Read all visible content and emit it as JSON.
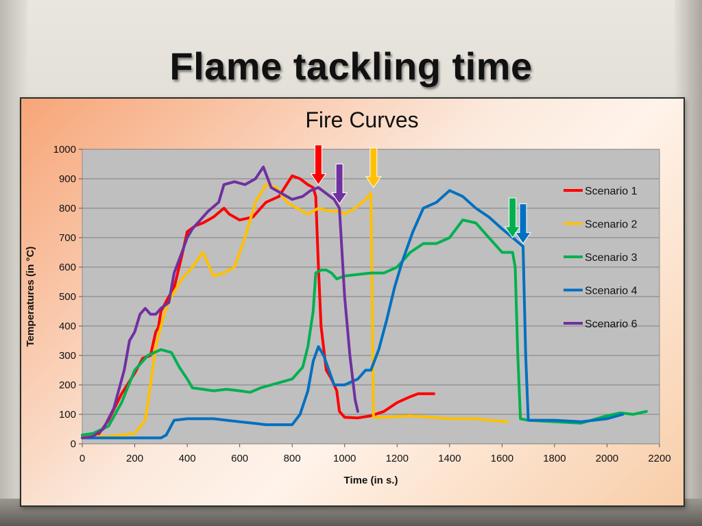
{
  "slide": {
    "title": "Flame tackling time"
  },
  "chart_data": {
    "type": "line",
    "title": "Fire Curves",
    "xlabel": "Time (in s.)",
    "ylabel": "Temperatures (in °C)",
    "xlim": [
      0,
      2200
    ],
    "ylim": [
      0,
      1000
    ],
    "x_ticks": [
      0,
      200,
      400,
      600,
      800,
      1000,
      1200,
      1400,
      1600,
      1800,
      2000,
      2200
    ],
    "y_ticks": [
      0,
      100,
      200,
      300,
      400,
      500,
      600,
      700,
      800,
      900,
      1000
    ],
    "grid": "horizontal",
    "legend_position": "right",
    "series": [
      {
        "name": "Scenario 1",
        "color": "#ff0000",
        "points": [
          [
            0,
            25
          ],
          [
            60,
            30
          ],
          [
            100,
            80
          ],
          [
            150,
            170
          ],
          [
            200,
            240
          ],
          [
            230,
            290
          ],
          [
            260,
            300
          ],
          [
            280,
            380
          ],
          [
            290,
            395
          ],
          [
            300,
            450
          ],
          [
            330,
            500
          ],
          [
            350,
            530
          ],
          [
            380,
            640
          ],
          [
            400,
            720
          ],
          [
            430,
            740
          ],
          [
            460,
            750
          ],
          [
            500,
            770
          ],
          [
            540,
            800
          ],
          [
            560,
            780
          ],
          [
            600,
            760
          ],
          [
            650,
            770
          ],
          [
            700,
            820
          ],
          [
            750,
            840
          ],
          [
            800,
            910
          ],
          [
            830,
            900
          ],
          [
            860,
            880
          ],
          [
            880,
            870
          ],
          [
            890,
            840
          ],
          [
            900,
            600
          ],
          [
            910,
            400
          ],
          [
            930,
            250
          ],
          [
            950,
            220
          ],
          [
            970,
            180
          ],
          [
            980,
            110
          ],
          [
            1000,
            90
          ],
          [
            1050,
            88
          ],
          [
            1100,
            95
          ],
          [
            1150,
            110
          ],
          [
            1200,
            140
          ],
          [
            1250,
            160
          ],
          [
            1280,
            170
          ],
          [
            1340,
            170
          ]
        ]
      },
      {
        "name": "Scenario 2",
        "color": "#ffc000",
        "points": [
          [
            0,
            25
          ],
          [
            100,
            25
          ],
          [
            200,
            35
          ],
          [
            240,
            80
          ],
          [
            260,
            200
          ],
          [
            280,
            330
          ],
          [
            300,
            400
          ],
          [
            320,
            460
          ],
          [
            340,
            500
          ],
          [
            380,
            560
          ],
          [
            420,
            600
          ],
          [
            460,
            650
          ],
          [
            500,
            570
          ],
          [
            540,
            580
          ],
          [
            580,
            600
          ],
          [
            620,
            700
          ],
          [
            660,
            820
          ],
          [
            700,
            880
          ],
          [
            740,
            870
          ],
          [
            780,
            820
          ],
          [
            820,
            800
          ],
          [
            860,
            780
          ],
          [
            900,
            800
          ],
          [
            940,
            790
          ],
          [
            980,
            790
          ],
          [
            1000,
            780
          ],
          [
            1040,
            800
          ],
          [
            1080,
            830
          ],
          [
            1100,
            850
          ],
          [
            1105,
            500
          ],
          [
            1110,
            90
          ],
          [
            1150,
            90
          ],
          [
            1250,
            95
          ],
          [
            1400,
            85
          ],
          [
            1500,
            85
          ],
          [
            1550,
            80
          ],
          [
            1620,
            75
          ]
        ]
      },
      {
        "name": "Scenario 3",
        "color": "#00b050",
        "points": [
          [
            0,
            30
          ],
          [
            40,
            35
          ],
          [
            100,
            60
          ],
          [
            150,
            140
          ],
          [
            200,
            250
          ],
          [
            250,
            300
          ],
          [
            300,
            320
          ],
          [
            340,
            310
          ],
          [
            370,
            260
          ],
          [
            400,
            220
          ],
          [
            420,
            190
          ],
          [
            460,
            185
          ],
          [
            500,
            180
          ],
          [
            550,
            185
          ],
          [
            600,
            180
          ],
          [
            640,
            175
          ],
          [
            680,
            190
          ],
          [
            720,
            200
          ],
          [
            760,
            210
          ],
          [
            800,
            220
          ],
          [
            840,
            260
          ],
          [
            860,
            330
          ],
          [
            880,
            450
          ],
          [
            890,
            580
          ],
          [
            910,
            590
          ],
          [
            930,
            590
          ],
          [
            950,
            580
          ],
          [
            970,
            560
          ],
          [
            1000,
            570
          ],
          [
            1050,
            575
          ],
          [
            1100,
            580
          ],
          [
            1150,
            580
          ],
          [
            1200,
            600
          ],
          [
            1250,
            650
          ],
          [
            1300,
            680
          ],
          [
            1350,
            680
          ],
          [
            1400,
            700
          ],
          [
            1450,
            760
          ],
          [
            1500,
            750
          ],
          [
            1550,
            700
          ],
          [
            1600,
            650
          ],
          [
            1640,
            650
          ],
          [
            1650,
            600
          ],
          [
            1660,
            300
          ],
          [
            1670,
            85
          ],
          [
            1700,
            80
          ],
          [
            1800,
            75
          ],
          [
            1900,
            70
          ],
          [
            2000,
            95
          ],
          [
            2050,
            105
          ],
          [
            2100,
            100
          ],
          [
            2150,
            110
          ]
        ]
      },
      {
        "name": "Scenario 4",
        "color": "#0070c0",
        "points": [
          [
            0,
            20
          ],
          [
            100,
            20
          ],
          [
            200,
            20
          ],
          [
            300,
            20
          ],
          [
            320,
            30
          ],
          [
            350,
            80
          ],
          [
            400,
            85
          ],
          [
            500,
            85
          ],
          [
            550,
            80
          ],
          [
            600,
            75
          ],
          [
            650,
            70
          ],
          [
            700,
            65
          ],
          [
            750,
            65
          ],
          [
            800,
            65
          ],
          [
            830,
            100
          ],
          [
            860,
            180
          ],
          [
            880,
            280
          ],
          [
            900,
            330
          ],
          [
            920,
            300
          ],
          [
            940,
            250
          ],
          [
            960,
            200
          ],
          [
            1000,
            200
          ],
          [
            1050,
            220
          ],
          [
            1080,
            250
          ],
          [
            1100,
            250
          ],
          [
            1130,
            320
          ],
          [
            1160,
            420
          ],
          [
            1190,
            530
          ],
          [
            1220,
            620
          ],
          [
            1260,
            720
          ],
          [
            1300,
            800
          ],
          [
            1350,
            820
          ],
          [
            1400,
            860
          ],
          [
            1450,
            840
          ],
          [
            1500,
            800
          ],
          [
            1550,
            770
          ],
          [
            1600,
            730
          ],
          [
            1640,
            700
          ],
          [
            1680,
            670
          ],
          [
            1690,
            300
          ],
          [
            1700,
            80
          ],
          [
            1800,
            80
          ],
          [
            1900,
            75
          ],
          [
            2000,
            85
          ],
          [
            2060,
            100
          ]
        ]
      },
      {
        "name": "Scenario 6",
        "color": "#7030a0",
        "points": [
          [
            0,
            20
          ],
          [
            40,
            25
          ],
          [
            80,
            50
          ],
          [
            120,
            120
          ],
          [
            160,
            250
          ],
          [
            180,
            350
          ],
          [
            200,
            380
          ],
          [
            220,
            440
          ],
          [
            240,
            460
          ],
          [
            260,
            440
          ],
          [
            280,
            440
          ],
          [
            300,
            460
          ],
          [
            330,
            480
          ],
          [
            350,
            580
          ],
          [
            380,
            650
          ],
          [
            400,
            700
          ],
          [
            420,
            730
          ],
          [
            450,
            760
          ],
          [
            480,
            790
          ],
          [
            520,
            820
          ],
          [
            540,
            880
          ],
          [
            580,
            890
          ],
          [
            620,
            880
          ],
          [
            660,
            900
          ],
          [
            690,
            940
          ],
          [
            720,
            870
          ],
          [
            760,
            850
          ],
          [
            800,
            830
          ],
          [
            840,
            840
          ],
          [
            870,
            860
          ],
          [
            900,
            870
          ],
          [
            930,
            850
          ],
          [
            960,
            830
          ],
          [
            980,
            800
          ],
          [
            1000,
            500
          ],
          [
            1020,
            300
          ],
          [
            1040,
            150
          ],
          [
            1050,
            110
          ]
        ]
      }
    ],
    "annotations": [
      {
        "type": "arrow",
        "color": "#ff0000",
        "x": 900,
        "y": 880
      },
      {
        "type": "arrow",
        "color": "#7030a0",
        "x": 980,
        "y": 815
      },
      {
        "type": "arrow",
        "color": "#ffc000",
        "x": 1110,
        "y": 870
      },
      {
        "type": "arrow",
        "color": "#00b050",
        "x": 1640,
        "y": 700
      },
      {
        "type": "arrow",
        "color": "#0070c0",
        "x": 1680,
        "y": 680
      }
    ]
  }
}
